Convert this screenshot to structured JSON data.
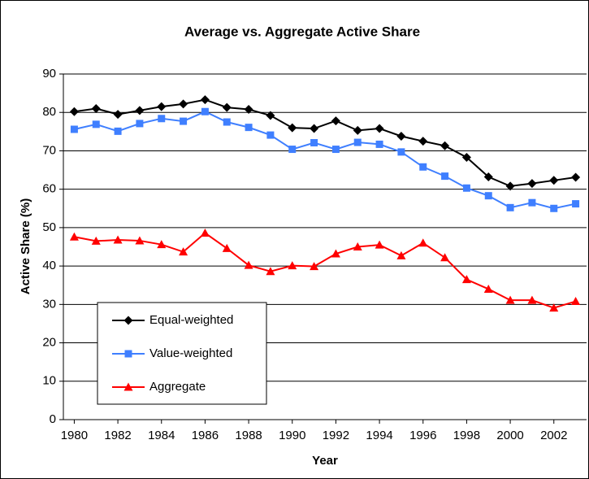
{
  "chart_data": {
    "type": "line",
    "title": "Average vs. Aggregate Active Share",
    "x_label": "Year",
    "y_label": "Active Share (%)",
    "x": [
      1980,
      1981,
      1982,
      1983,
      1984,
      1985,
      1986,
      1987,
      1988,
      1989,
      1990,
      1991,
      1992,
      1993,
      1994,
      1995,
      1996,
      1997,
      1998,
      1999,
      2000,
      2001,
      2002,
      2003
    ],
    "xlim": [
      1979.5,
      2003.5
    ],
    "xticks": [
      1980,
      1982,
      1984,
      1986,
      1988,
      1990,
      1992,
      1994,
      1996,
      1998,
      2000,
      2002
    ],
    "ylim": [
      0,
      90
    ],
    "yticks": [
      0,
      10,
      20,
      30,
      40,
      50,
      60,
      70,
      80,
      90
    ],
    "grid": true,
    "legend": "lower left",
    "series": [
      {
        "name": "Equal-weighted",
        "color": "#000000",
        "marker": "diamond",
        "values": [
          80.2,
          81,
          79.5,
          80.5,
          81.5,
          82.2,
          83.3,
          81.3,
          80.8,
          79.2,
          76,
          75.8,
          77.8,
          75.3,
          75.8,
          73.8,
          72.5,
          71.3,
          68.3,
          63.2,
          60.8,
          61.5,
          62.3,
          63.1
        ]
      },
      {
        "name": "Value-weighted",
        "color": "#3f7fff",
        "marker": "square",
        "values": [
          75.6,
          76.9,
          75.1,
          77.1,
          78.4,
          77.7,
          80.2,
          77.5,
          76.1,
          74.1,
          70.4,
          72.1,
          70.4,
          72.2,
          71.7,
          69.7,
          65.8,
          63.4,
          60.3,
          58.3,
          55.2,
          56.5,
          55,
          56.2
        ]
      },
      {
        "name": "Aggregate",
        "color": "#ff0000",
        "marker": "triangle",
        "values": [
          47.6,
          46.5,
          46.8,
          46.6,
          45.6,
          43.7,
          48.6,
          44.6,
          40.2,
          38.6,
          40.1,
          39.9,
          43.2,
          45,
          45.5,
          42.7,
          46,
          42.2,
          36.5,
          34,
          31.1,
          31.1,
          29.1,
          30.8
        ]
      }
    ]
  }
}
